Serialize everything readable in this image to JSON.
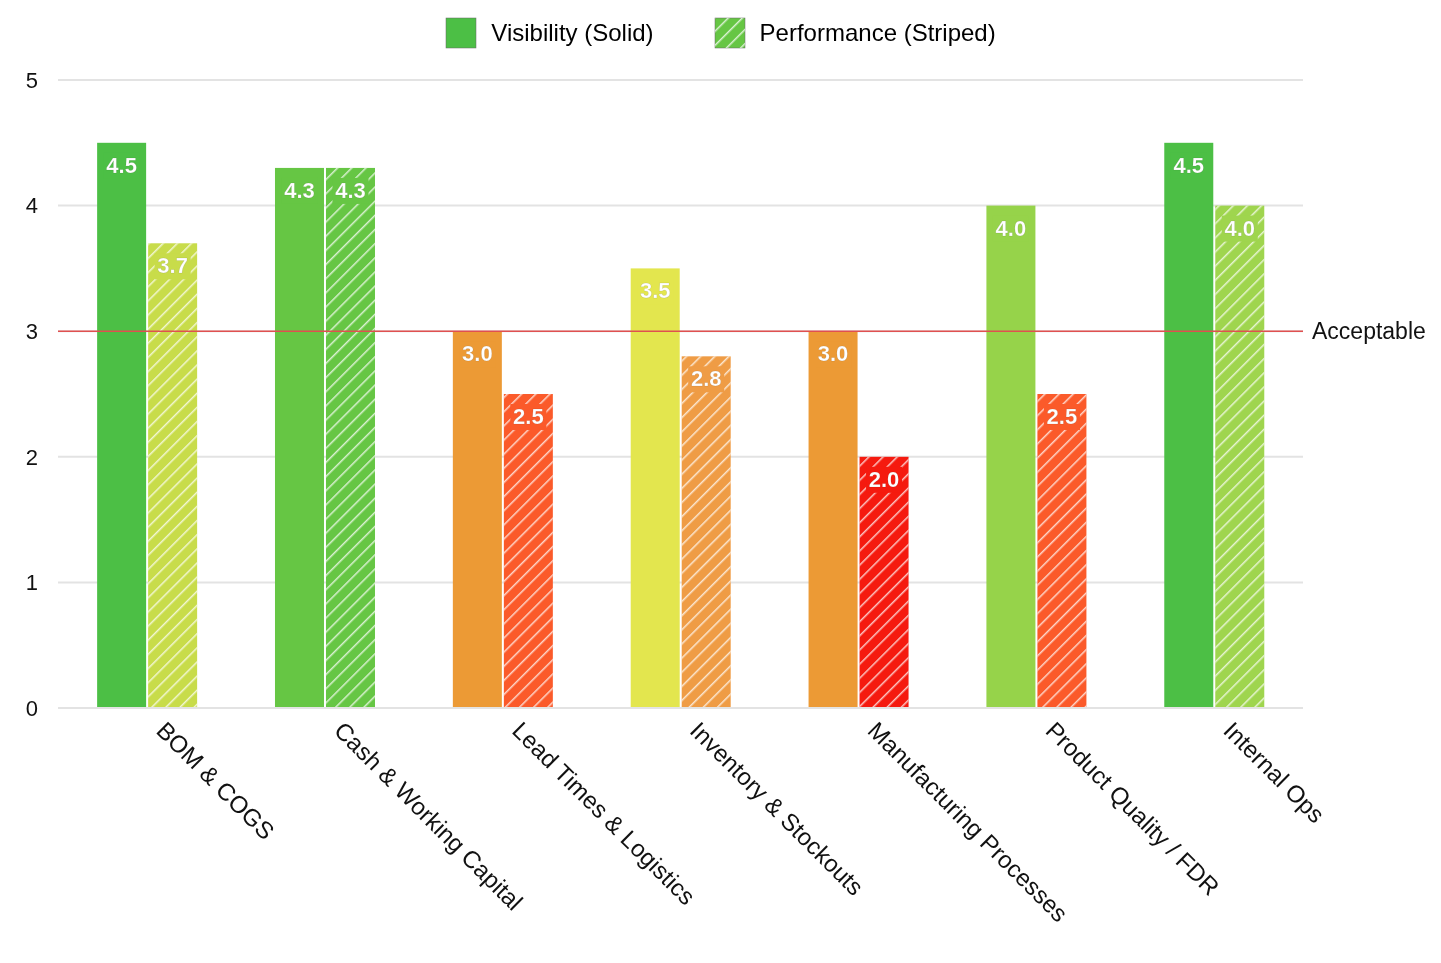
{
  "chart_data": {
    "type": "bar",
    "categories": [
      "BOM & COGS",
      "Cash & Working Capital",
      "Lead Times & Logistics",
      "Inventory & Stockouts",
      "Manufacturing Processes",
      "Product Quality / FDR",
      "Internal Ops"
    ],
    "series": [
      {
        "name": "Visibility (Solid)",
        "color": "#4cbf45",
        "colors": [
          "#4cbf45",
          "#66c644",
          "#ec9a35",
          "#e3e64e",
          "#ec9a35",
          "#96d34a",
          "#4cbf45"
        ],
        "values": [
          4.5,
          4.3,
          3.0,
          3.5,
          3.0,
          4.0,
          4.5
        ],
        "value_labels": [
          "4.5",
          "4.3",
          "3.0",
          "3.5",
          "3.0",
          "4.0",
          "4.5"
        ]
      },
      {
        "name": "Performance (Striped)",
        "color": "#66c644",
        "colors": [
          "#c8dc4a",
          "#66c644",
          "#fb5a2a",
          "#ef9c45",
          "#f51a0f",
          "#fb5a2a",
          "#9fd54e"
        ],
        "values": [
          3.7,
          4.3,
          2.5,
          2.8,
          2.0,
          2.5,
          4.0
        ],
        "value_labels": [
          "3.7",
          "4.3",
          "2.5",
          "2.8",
          "2.0",
          "2.5",
          "4.0"
        ]
      }
    ],
    "ylim": [
      0,
      5
    ],
    "yticks": [
      0,
      1,
      2,
      3,
      4,
      5
    ],
    "grid": "y",
    "legend": "top",
    "ref_lines": [
      {
        "axis": "y",
        "value": 3,
        "label": "Acceptable",
        "color": "#e05050"
      }
    ]
  }
}
